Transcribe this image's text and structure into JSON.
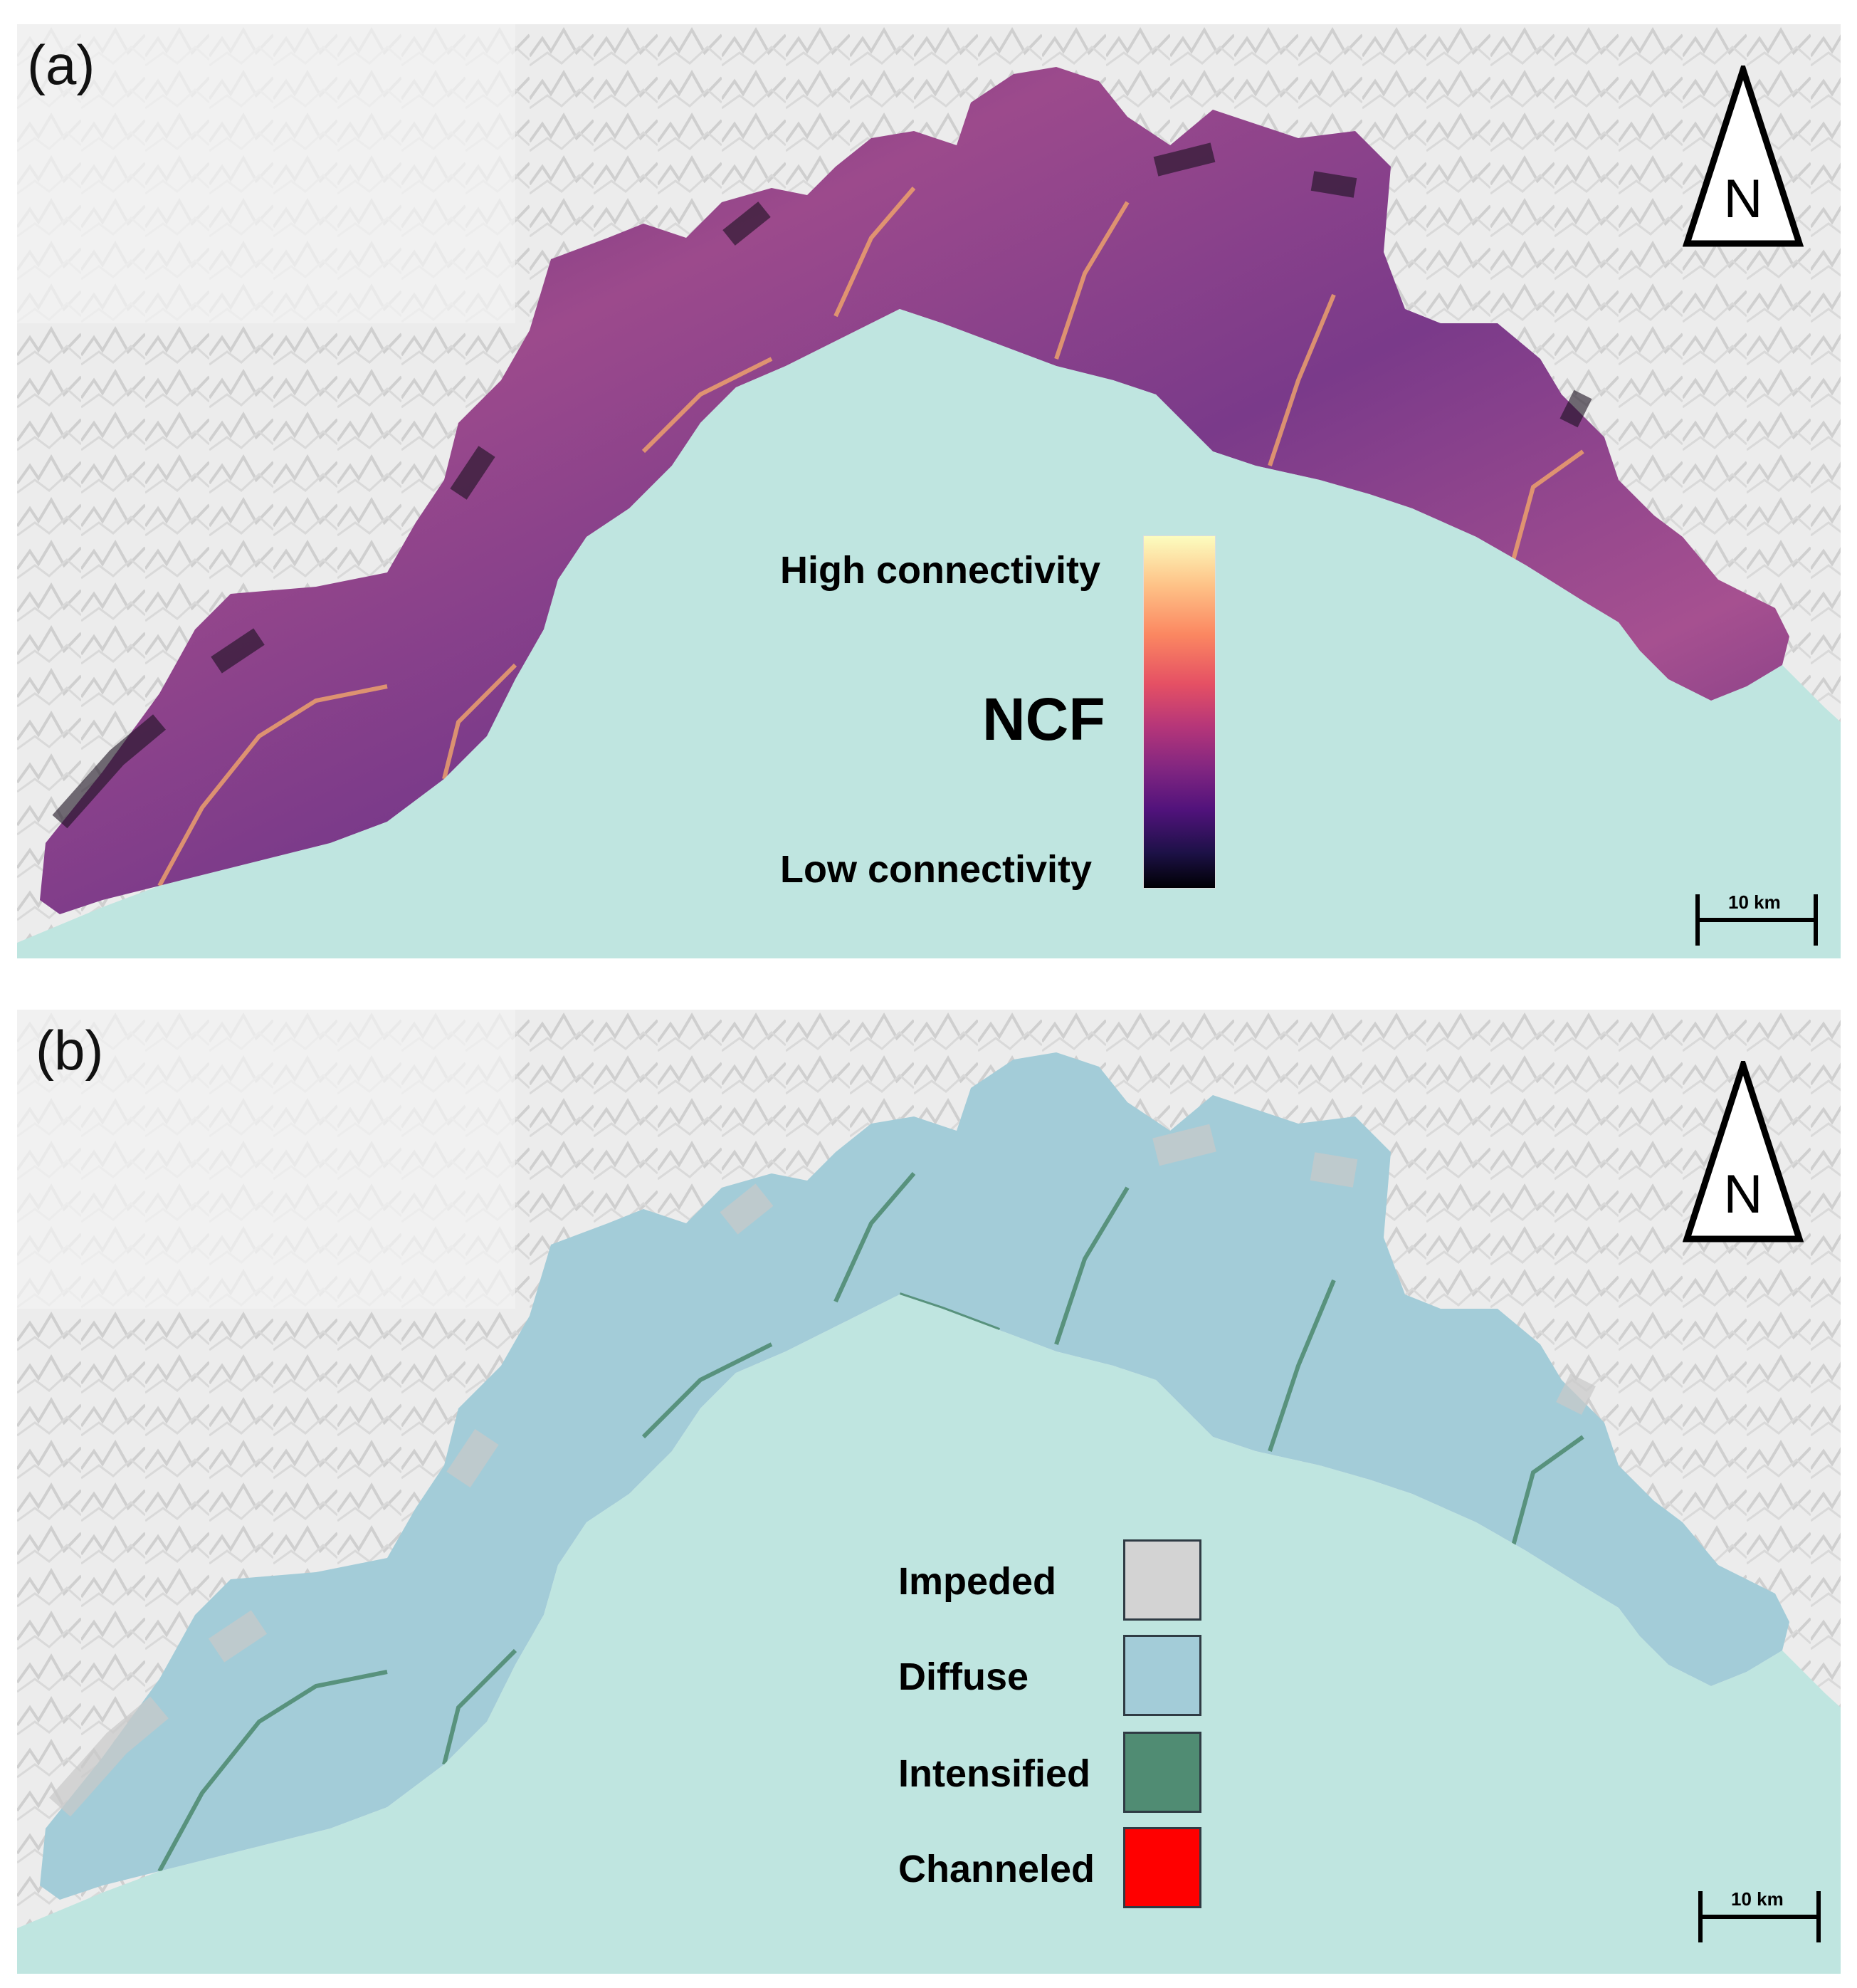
{
  "figure": {
    "panels": [
      {
        "id": "a",
        "label": "(a)",
        "north_arrow": "N",
        "scale_bar": "10 km",
        "legend": {
          "type": "continuous",
          "title": "NCF",
          "high_label": "High connectivity",
          "low_label": "Low connectivity",
          "colormap": [
            "#000004",
            "#1d1147",
            "#50127b",
            "#822681",
            "#b63679",
            "#e55064",
            "#fb8761",
            "#fec287",
            "#fcfdbf"
          ]
        }
      },
      {
        "id": "b",
        "label": "(b)",
        "north_arrow": "N",
        "scale_bar": "10 km",
        "legend": {
          "type": "categorical",
          "classes": [
            {
              "label": "Impeded",
              "color": "#d3d3d3"
            },
            {
              "label": "Diffuse",
              "color": "#a3ccd8"
            },
            {
              "label": "Intensified",
              "color": "#508c73"
            },
            {
              "label": "Channeled",
              "color": "#ff0000"
            }
          ]
        }
      }
    ],
    "colors": {
      "sea": "#bfe5e0",
      "relief": "#e8e8e8",
      "region_a_mid": "#9c4a8c",
      "region_b_fill": "#a3ccd8",
      "region_b_rivers": "#508c73"
    }
  }
}
